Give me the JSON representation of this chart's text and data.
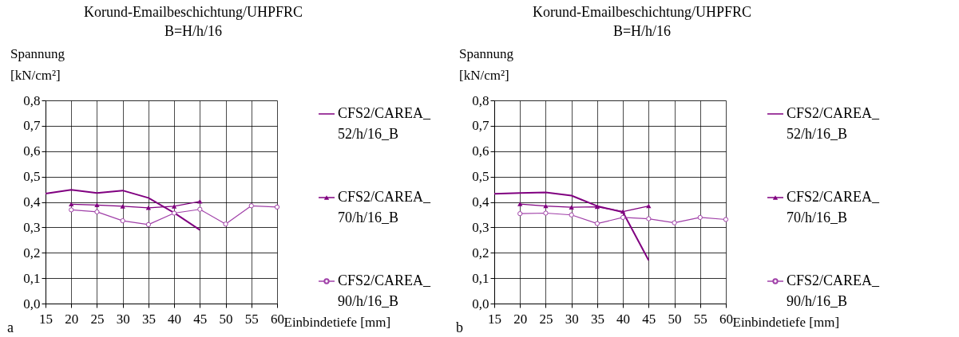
{
  "chart_data": [
    {
      "type": "line",
      "title": "Korund-Emailbeschichtung/UHPFRC",
      "subtitle": "B=H/h/16",
      "xlabel": "Einbindetiefe [mm]",
      "ylabel": "Spannung [kN/cm²]",
      "categories": [
        "15",
        "20",
        "25",
        "30",
        "35",
        "40",
        "45",
        "50",
        "55",
        "60"
      ],
      "series": [
        {
          "name": "CFS2/CAREA_52/h/16_B",
          "color": "#800080",
          "marker": "none",
          "values": [
            0.433,
            0.448,
            0.435,
            0.445,
            0.416,
            0.357,
            0.29,
            null,
            null,
            null
          ]
        },
        {
          "name": "CFS2/CAREA_70/h/16_B",
          "color": "#800080",
          "marker": "triangle",
          "values": [
            null,
            0.391,
            0.388,
            0.383,
            0.377,
            0.383,
            0.402,
            null,
            null,
            null
          ]
        },
        {
          "name": "CFS2/CAREA_90/h/16_B",
          "color": "#a040a8",
          "marker": "circle",
          "values": [
            null,
            0.369,
            0.361,
            0.326,
            0.311,
            0.356,
            0.371,
            0.313,
            0.385,
            0.38
          ]
        }
      ],
      "ylim": [
        0,
        0.8
      ],
      "yticks": [
        {
          "value": 0,
          "label": "0,0"
        },
        {
          "value": 0.1,
          "label": "0,1"
        },
        {
          "value": 0.2,
          "label": "0,2"
        },
        {
          "value": 0.3,
          "label": "0,3"
        },
        {
          "value": 0.4,
          "label": "0,4"
        },
        {
          "value": 0.5,
          "label": "0,5"
        },
        {
          "value": 0.6,
          "label": "0,6"
        },
        {
          "value": 0.7,
          "label": "0,7"
        },
        {
          "value": 0.8,
          "label": "0,8"
        }
      ],
      "grid": true,
      "legend": "right",
      "annotations": [
        "a"
      ]
    },
    {
      "type": "line",
      "title": "Korund-Emailbeschichtung/UHPFRC",
      "subtitle": "B=H/h/16",
      "xlabel": "Einbindetiefe [mm]",
      "ylabel": "Spannung [kN/cm²]",
      "categories": [
        "15",
        "20",
        "25",
        "30",
        "35",
        "40",
        "45",
        "50",
        "55",
        "60"
      ],
      "series": [
        {
          "name": "CFS2/CAREA_52/h/16_B",
          "color": "#800080",
          "marker": "none",
          "values": [
            0.432,
            0.435,
            0.438,
            0.425,
            0.384,
            0.36,
            0.17,
            null,
            null,
            null
          ]
        },
        {
          "name": "CFS2/CAREA_70/h/16_B",
          "color": "#800080",
          "marker": "triangle",
          "values": [
            null,
            0.392,
            0.384,
            0.379,
            0.381,
            0.362,
            0.384,
            null,
            null,
            null
          ]
        },
        {
          "name": "CFS2/CAREA_90/h/16_B",
          "color": "#a040a8",
          "marker": "circle",
          "values": [
            null,
            0.354,
            0.356,
            0.349,
            0.315,
            0.339,
            0.334,
            0.318,
            0.339,
            0.331
          ]
        }
      ],
      "ylim": [
        0,
        0.8
      ],
      "yticks": [
        {
          "value": 0,
          "label": "0,0"
        },
        {
          "value": 0.1,
          "label": "0,1"
        },
        {
          "value": 0.2,
          "label": "0,2"
        },
        {
          "value": 0.3,
          "label": "0,3"
        },
        {
          "value": 0.4,
          "label": "0,4"
        },
        {
          "value": 0.5,
          "label": "0,5"
        },
        {
          "value": 0.6,
          "label": "0,6"
        },
        {
          "value": 0.7,
          "label": "0,7"
        },
        {
          "value": 0.8,
          "label": "0,8"
        }
      ],
      "grid": true,
      "legend": "right",
      "annotations": [
        "b"
      ]
    }
  ]
}
